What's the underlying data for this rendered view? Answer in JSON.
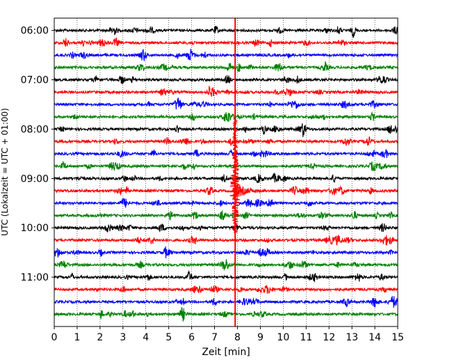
{
  "chart_data": {
    "type": "line",
    "xlabel": "Zeit  [min]",
    "ylabel": "UTC (Lokalzeit = UTC + 01:00)",
    "xlim": [
      0,
      15
    ],
    "xticks": [
      "0",
      "1",
      "2",
      "3",
      "4",
      "5",
      "6",
      "7",
      "8",
      "9",
      "10",
      "11",
      "12",
      "13",
      "14",
      "15"
    ],
    "yticks": [
      "06:00",
      "07:00",
      "08:00",
      "09:00",
      "10:00",
      "11:00"
    ],
    "ylim_hours": [
      5.75,
      12.0
    ],
    "trace_interval_min": 15,
    "trace_start_hour": 6.0,
    "trace_count": 24,
    "trace_colors": [
      "#000000",
      "#ff0000",
      "#0000ff",
      "#008000"
    ],
    "grid_x": "dotted",
    "marker_line": {
      "x_min": 7.9,
      "color": "#ff0000"
    },
    "event": {
      "x_start_min": 7.85,
      "trace_index": 13,
      "color": "#ff0000"
    }
  }
}
